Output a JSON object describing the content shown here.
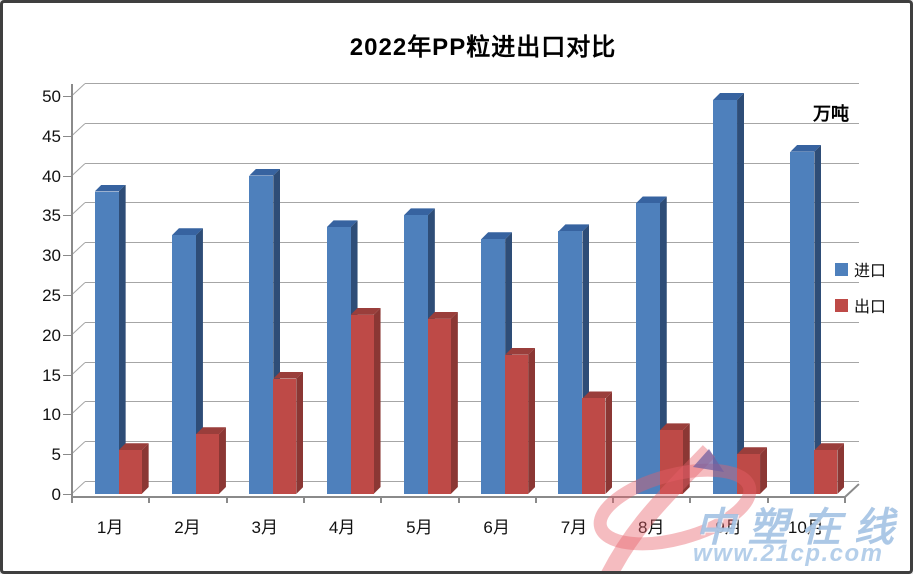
{
  "chart": {
    "title": "2022年PP粒进出口对比",
    "unit_label": "万吨",
    "legend": [
      {
        "label": "进口",
        "color": "#4E80BC"
      },
      {
        "label": "出口",
        "color": "#BE4A47"
      }
    ]
  },
  "chart_data": {
    "type": "bar",
    "style": "3d-clustered-column",
    "title": "2022年PP粒进出口对比",
    "unit": "万吨",
    "categories": [
      "1月",
      "2月",
      "3月",
      "4月",
      "5月",
      "6月",
      "7月",
      "8月",
      "9月",
      "10月"
    ],
    "series": [
      {
        "name": "进口",
        "color": "#4E80BC",
        "color_top": "#3763A0",
        "color_side": "#2E4D77",
        "values": [
          38,
          32.5,
          40,
          33.5,
          35,
          32,
          33,
          36.5,
          49.5,
          43
        ]
      },
      {
        "name": "出口",
        "color": "#BE4A47",
        "color_top": "#9A3E3B",
        "color_side": "#8B3734",
        "values": [
          5.5,
          7.5,
          14.5,
          22.5,
          22,
          17.5,
          12,
          8,
          5,
          5.5
        ]
      }
    ],
    "ylim": [
      0,
      50
    ],
    "ytick_step": 5,
    "grid": true,
    "legend_position": "right",
    "gridline_color": "#a6a6a6",
    "axis_color": "#8a8a8a"
  },
  "watermark": {
    "brand": "中塑在线",
    "url": "www.21cp.com",
    "logo_color": "#E7606A",
    "text_color": "#9EBEE2"
  }
}
